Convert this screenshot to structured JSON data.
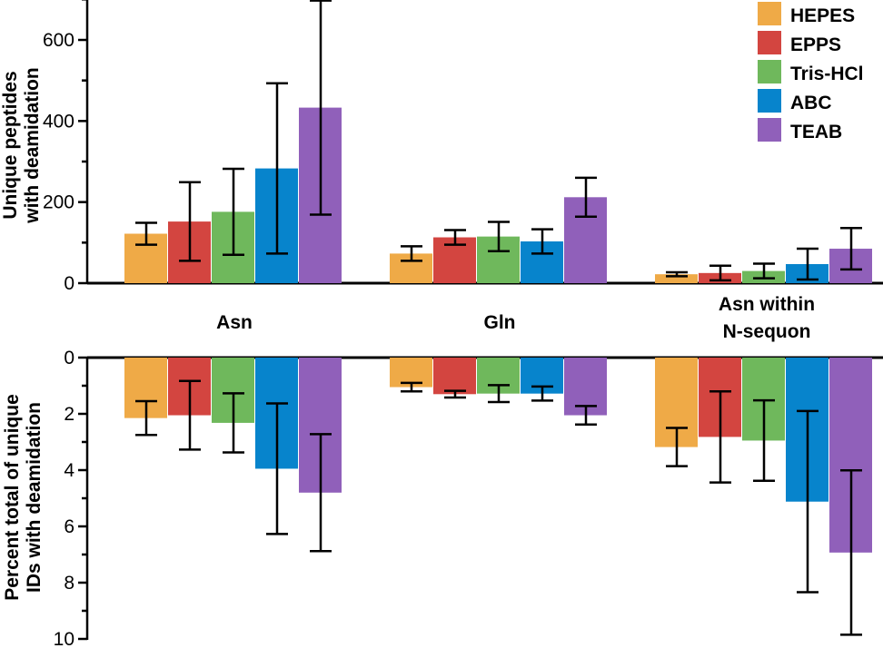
{
  "chart_data": [
    {
      "type": "bar",
      "categories": [
        "Asn",
        "Gln",
        "Asn within N-sequon"
      ],
      "category_label_lines": [
        [
          "Asn"
        ],
        [
          "Gln"
        ],
        [
          "Asn within",
          "N-sequon"
        ]
      ],
      "ylabel_lines": [
        "Unique peptides",
        "with deamidation"
      ],
      "ylim": [
        0,
        700
      ],
      "yticks": [
        0,
        200,
        400,
        600
      ],
      "series": [
        {
          "name": "HEPES",
          "color": "#EFAA47",
          "values": [
            122,
            73,
            22
          ],
          "err": [
            27,
            18,
            5
          ]
        },
        {
          "name": "EPPS",
          "color": "#D34540",
          "values": [
            152,
            113,
            25
          ],
          "err": [
            97,
            18,
            18
          ]
        },
        {
          "name": "Tris-HCl",
          "color": "#6FB85C",
          "values": [
            176,
            115,
            30
          ],
          "err": [
            106,
            36,
            18
          ]
        },
        {
          "name": "ABC",
          "color": "#0784CC",
          "values": [
            283,
            103,
            47
          ],
          "err": [
            210,
            30,
            38
          ]
        },
        {
          "name": "TEAB",
          "color": "#9060BA",
          "values": [
            433,
            212,
            85
          ],
          "err": [
            264,
            48,
            51
          ]
        }
      ],
      "legend": "top-right"
    },
    {
      "type": "bar",
      "categories": [
        "Asn",
        "Gln",
        "Asn within N-sequon"
      ],
      "ylabel_lines": [
        "Percent total of unique",
        "IDs with deamidation"
      ],
      "ylim": [
        0,
        10
      ],
      "y_inverted": true,
      "yticks": [
        0,
        2,
        4,
        6,
        8,
        10
      ],
      "series": [
        {
          "name": "HEPES",
          "color": "#EFAA47",
          "values": [
            2.15,
            1.05,
            3.18
          ],
          "err": [
            0.6,
            0.15,
            0.68
          ]
        },
        {
          "name": "EPPS",
          "color": "#D34540",
          "values": [
            2.05,
            1.3,
            2.82
          ],
          "err": [
            1.22,
            0.12,
            1.62
          ]
        },
        {
          "name": "Tris-HCl",
          "color": "#6FB85C",
          "values": [
            2.32,
            1.28,
            2.95
          ],
          "err": [
            1.05,
            0.3,
            1.43
          ]
        },
        {
          "name": "ABC",
          "color": "#0784CC",
          "values": [
            3.95,
            1.28,
            5.12
          ],
          "err": [
            2.32,
            0.25,
            3.22
          ]
        },
        {
          "name": "TEAB",
          "color": "#9060BA",
          "values": [
            4.8,
            2.05,
            6.93
          ],
          "err": [
            2.08,
            0.33,
            2.92
          ]
        }
      ]
    }
  ]
}
